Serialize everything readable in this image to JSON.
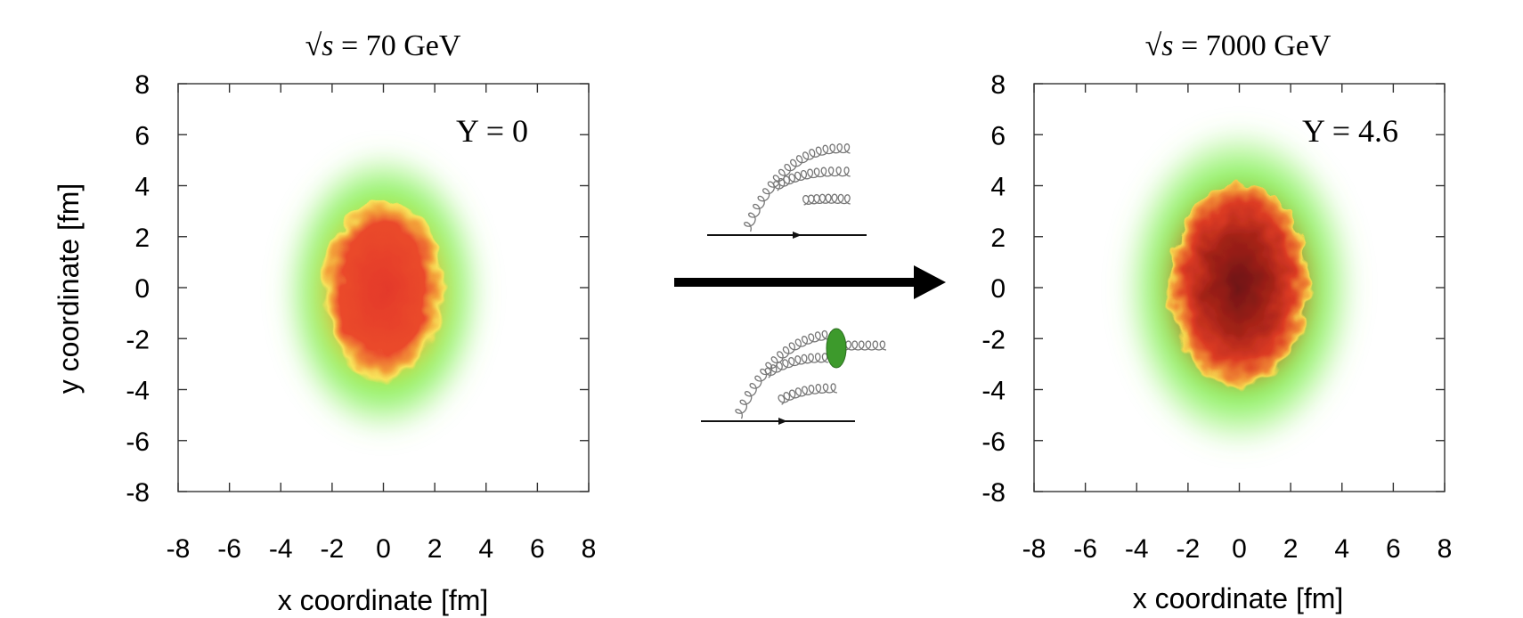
{
  "chart_data": [
    {
      "type": "heatmap",
      "title_prefix": "√",
      "title_var": "s",
      "title_rest": " = 70 GeV",
      "annotation": "Y = 0",
      "xlabel": "x coordinate [fm]",
      "ylabel": "y coordinate [fm]",
      "xlim": [
        -8,
        8
      ],
      "ylim": [
        -8,
        8
      ],
      "xticks": [
        "-8",
        "-6",
        "-4",
        "-2",
        "0",
        "2",
        "4",
        "6",
        "8"
      ],
      "yticks": [
        "8",
        "6",
        "4",
        "2",
        "0",
        "-2",
        "-4",
        "-6",
        "-8"
      ],
      "grid": false,
      "blob": {
        "cx": 0.0,
        "cy": -0.2,
        "rx": 2.5,
        "ry": 3.8,
        "core": "#e8392a",
        "mid": "#f5cf45",
        "outer": "#7ef04e"
      }
    },
    {
      "type": "heatmap",
      "title_prefix": "√",
      "title_var": "s",
      "title_rest": " = 7000 GeV",
      "annotation": "Y = 4.6",
      "xlabel": "x coordinate [fm]",
      "ylabel": "",
      "xlim": [
        -8,
        8
      ],
      "ylim": [
        -8,
        8
      ],
      "xticks": [
        "-8",
        "-6",
        "-4",
        "-2",
        "0",
        "2",
        "4",
        "6",
        "8"
      ],
      "yticks": [
        "8",
        "6",
        "4",
        "2",
        "0",
        "-2",
        "-4",
        "-6",
        "-8"
      ],
      "grid": false,
      "blob": {
        "cx": 0.0,
        "cy": 0.0,
        "rx": 2.9,
        "ry": 4.3,
        "core": "#6e1412",
        "mid": "#dc3b24",
        "outer": "#7ef04e"
      }
    }
  ],
  "colors": {
    "arrow": "#000000",
    "gluon": "#777777",
    "blob_green": "#3d9a2c"
  }
}
